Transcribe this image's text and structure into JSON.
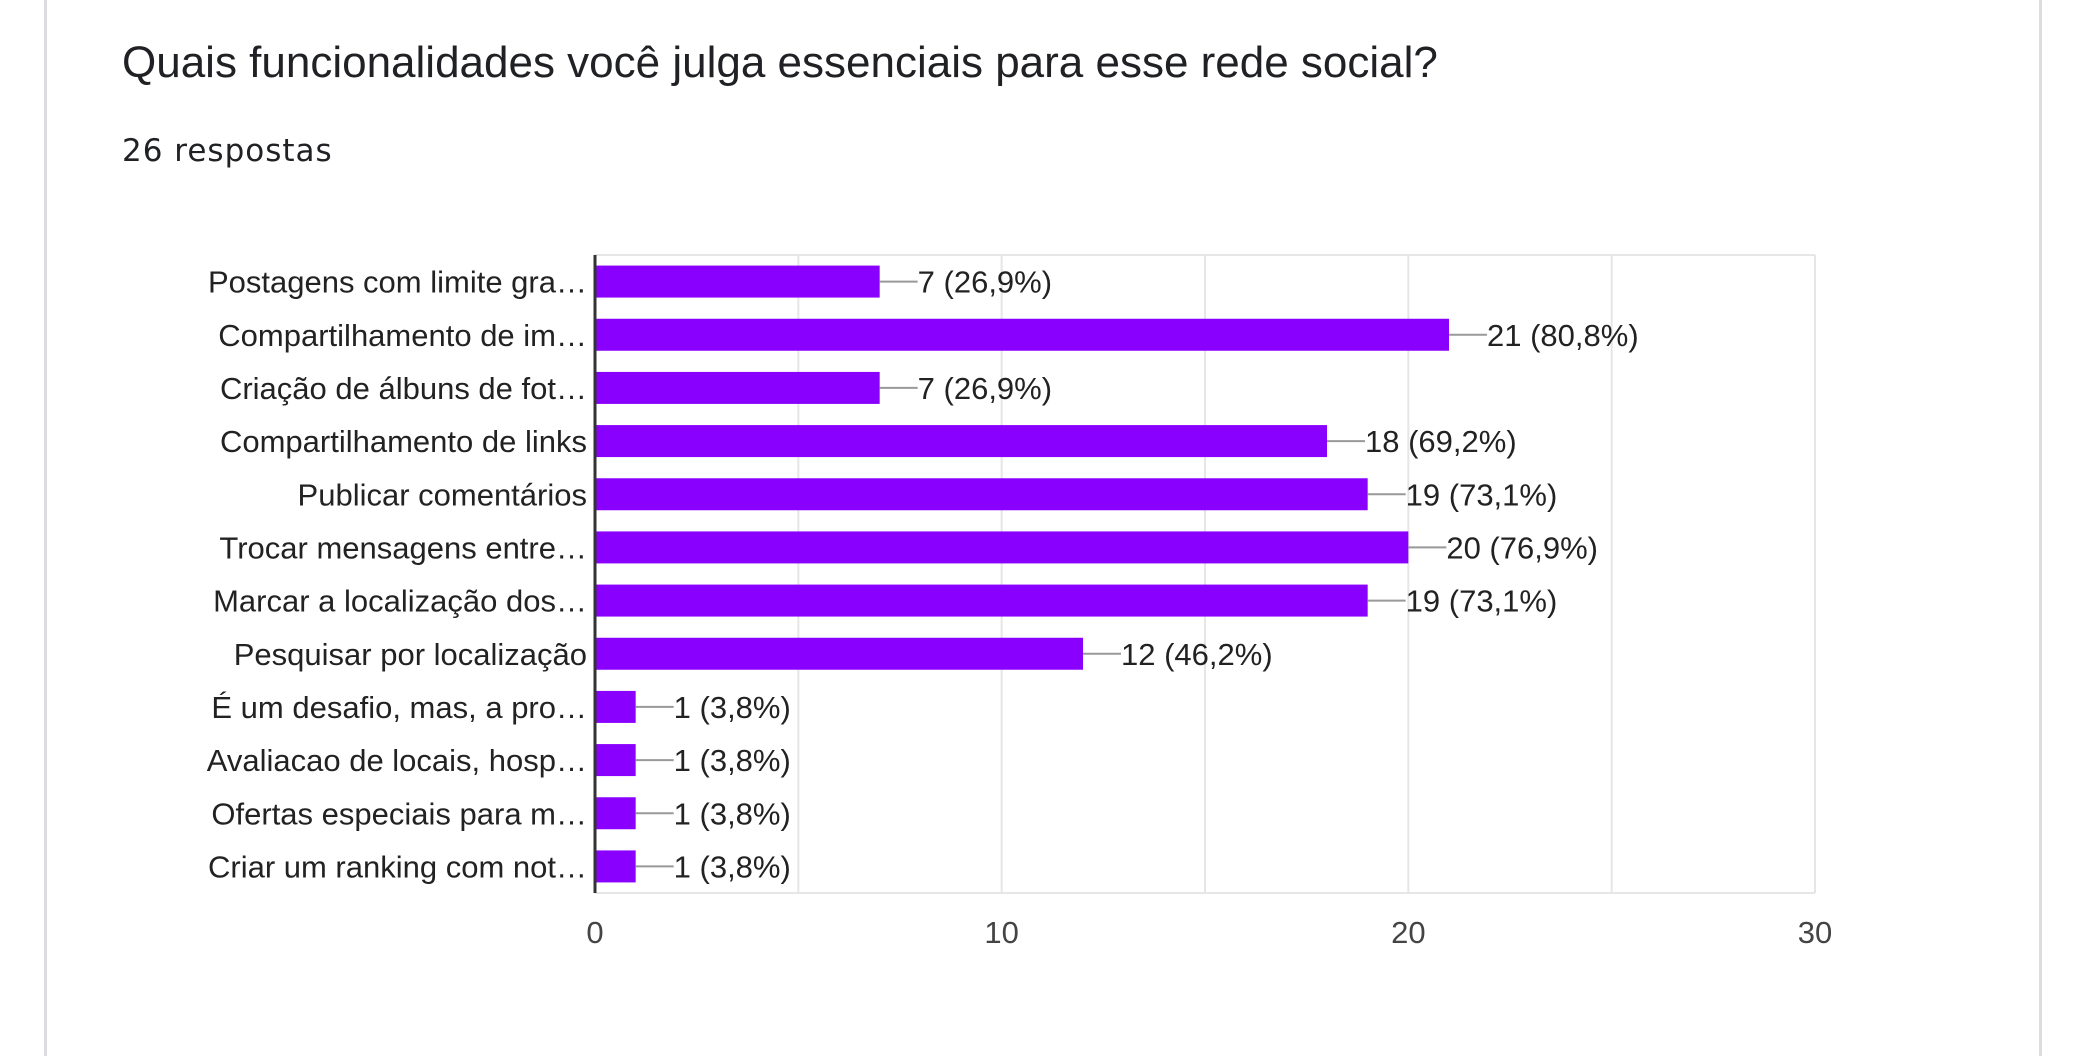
{
  "question": {
    "title": "Quais funcionalidades você julga essenciais para esse rede social?",
    "responses": "26 respostas"
  },
  "colors": {
    "bar": "#8a00ff",
    "grid": "#e6e6e6",
    "axis": "#333333",
    "connector": "#999999"
  },
  "chart_data": {
    "type": "bar",
    "orientation": "horizontal",
    "title": "Quais funcionalidades você julga essenciais para esse rede social?",
    "categories": [
      "Postagens com limite gra…",
      "Compartilhamento de im…",
      "Criação de álbuns de fot…",
      "Compartilhamento de links",
      "Publicar comentários",
      "Trocar mensagens entre…",
      "Marcar a localização dos…",
      "Pesquisar por localização",
      "É um desafio, mas, a pro…",
      "Avaliacao de locais, hosp…",
      "Ofertas especiais para m…",
      "Criar um ranking com not…"
    ],
    "values": [
      7,
      21,
      7,
      18,
      19,
      20,
      19,
      12,
      1,
      1,
      1,
      1
    ],
    "value_labels": [
      "7 (26,9%)",
      "21 (80,8%)",
      "7 (26,9%)",
      "18 (69,2%)",
      "19 (73,1%)",
      "20 (76,9%)",
      "19 (73,1%)",
      "12 (46,2%)",
      "1 (3,8%)",
      "1 (3,8%)",
      "1 (3,8%)",
      "1 (3,8%)"
    ],
    "xlim": [
      0,
      30
    ],
    "xticks": [
      "0",
      "10",
      "20",
      "30"
    ],
    "grid": true,
    "legend": "none"
  }
}
